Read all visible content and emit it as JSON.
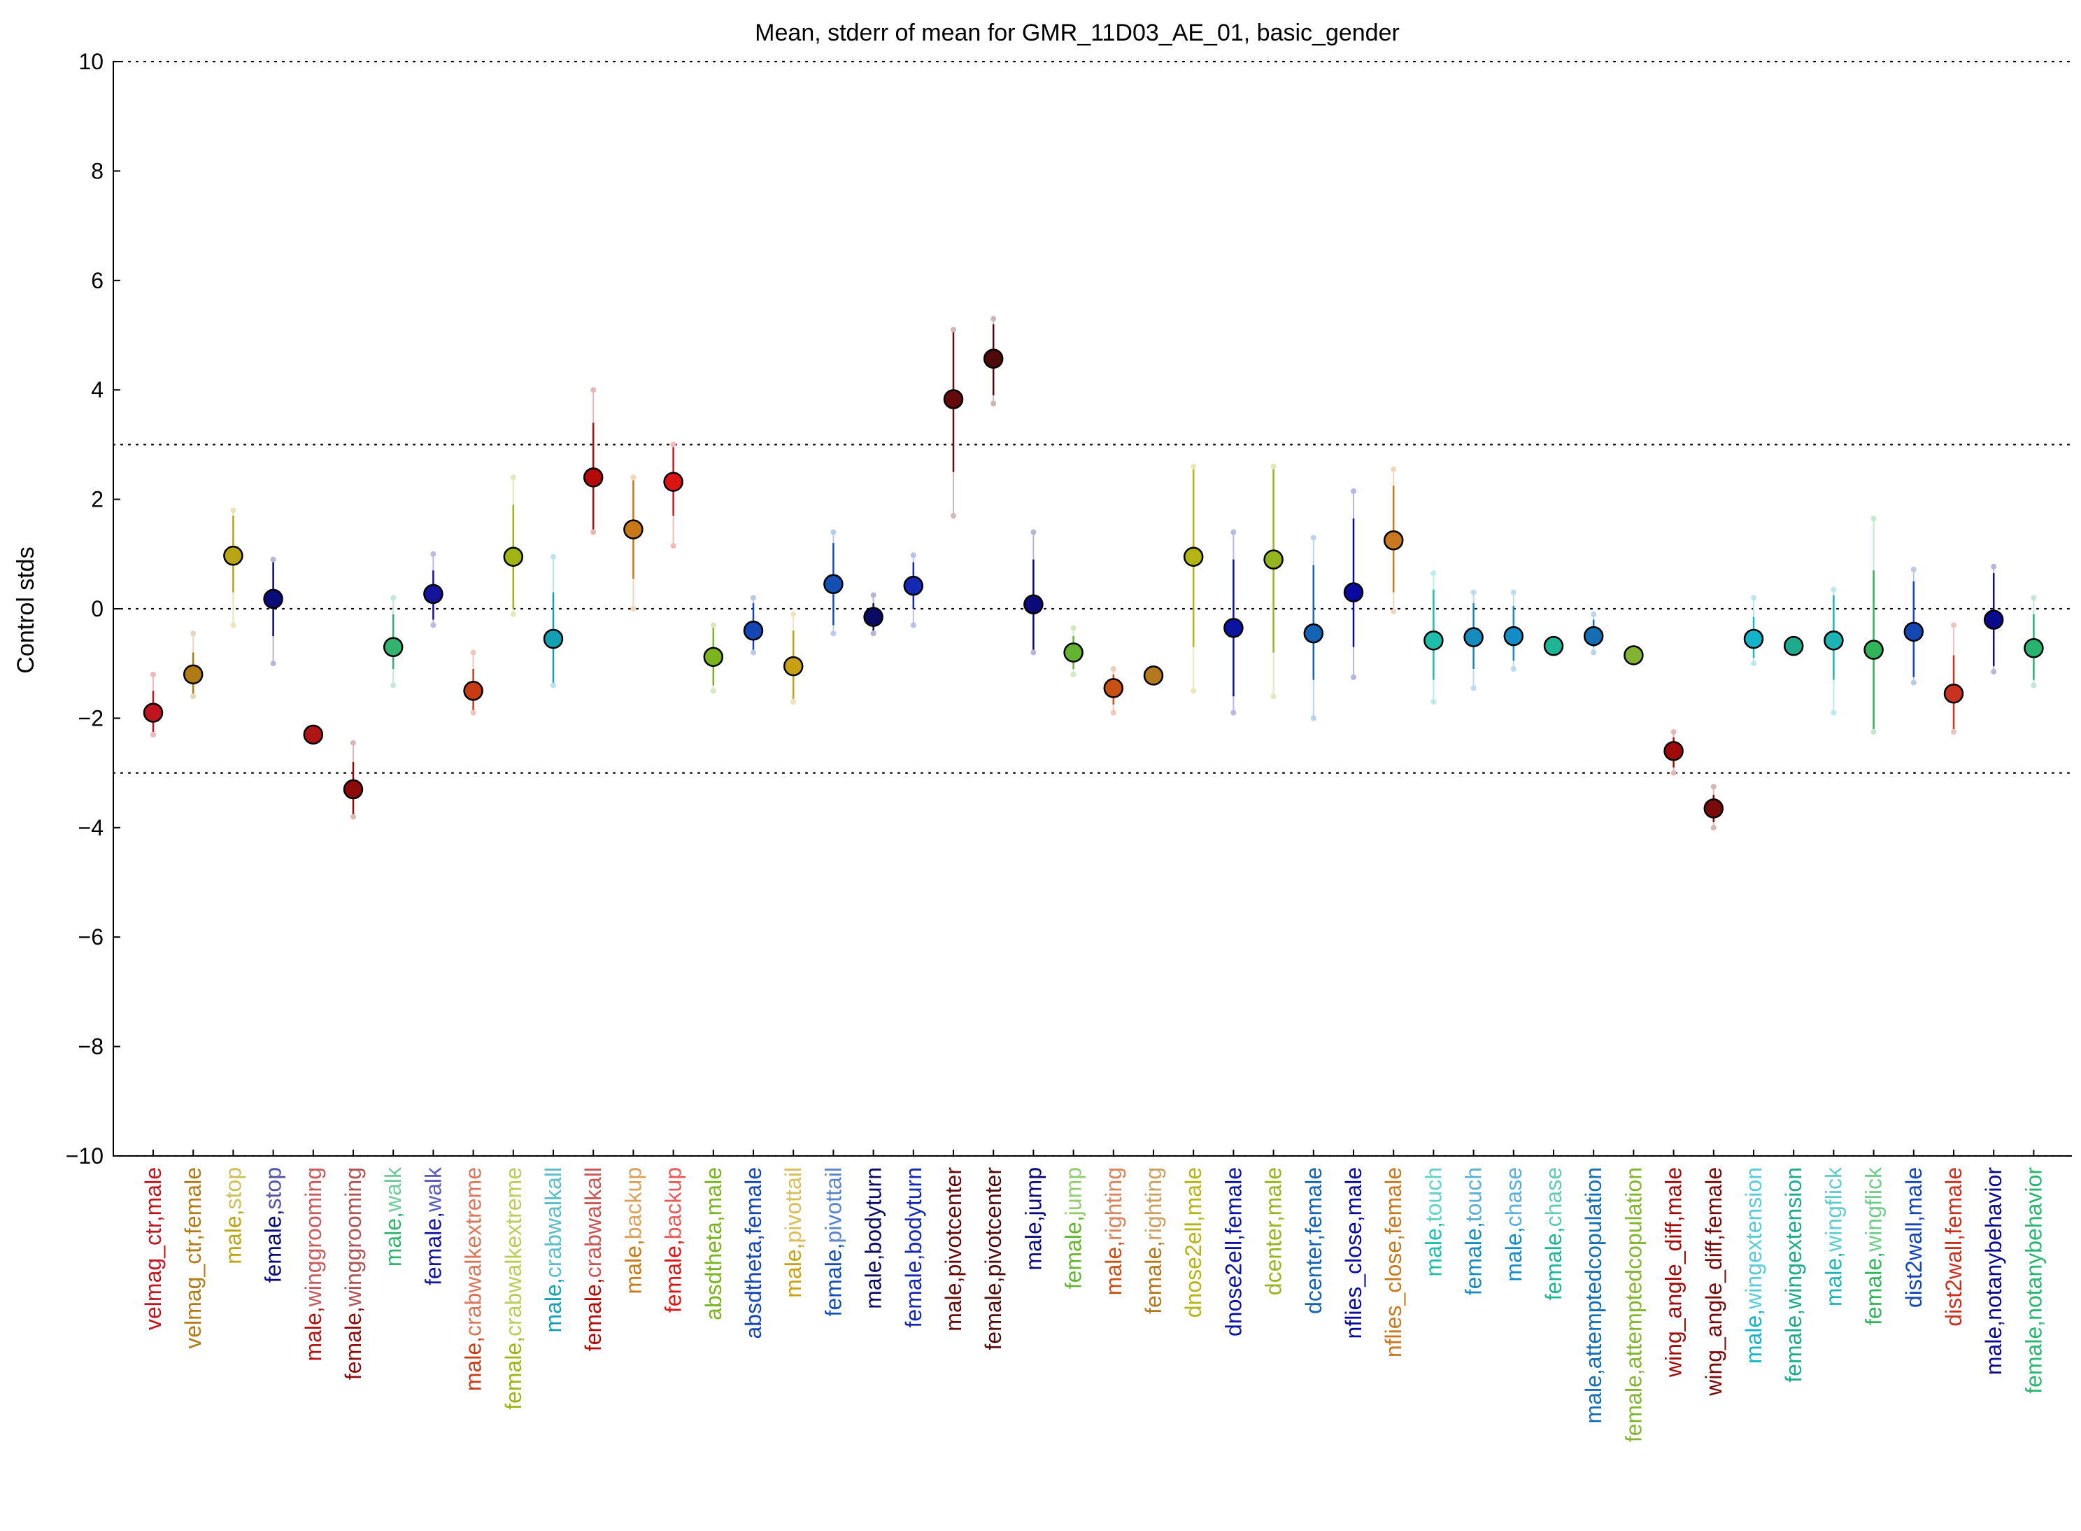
{
  "chart_data": {
    "type": "scatter",
    "title": "Mean, stderr of mean for GMR_11D03_AE_01, basic_gender",
    "xlabel": "",
    "ylabel": "Control stds",
    "ylim": [
      -10,
      10
    ],
    "yticks": [
      -10,
      -8,
      -6,
      -4,
      -2,
      0,
      2,
      4,
      6,
      8,
      10
    ],
    "ytick_labels": [
      "−10",
      "−8",
      "−6",
      "−4",
      "−2",
      "0",
      "2",
      "4",
      "6",
      "8",
      "10"
    ],
    "reference_lines": [
      -10,
      -3,
      0,
      3,
      10
    ],
    "grid": false,
    "legend": "none",
    "series": [
      {
        "label": "velmag_ctr,male",
        "colored": "",
        "color": "#c0141e",
        "mean": -1.9,
        "err_lo": -2.3,
        "err_hi": -1.5,
        "pt_lo": -2.3,
        "pt_hi": -1.2
      },
      {
        "label": "velmag_ctr,female",
        "colored": "",
        "color": "#b07a14",
        "mean": -1.2,
        "err_lo": -1.6,
        "err_hi": -0.8,
        "pt_lo": -1.6,
        "pt_hi": -0.45
      },
      {
        "label": "male,stop",
        "colored": "stop",
        "color": "#b8a414",
        "mean": 0.97,
        "err_lo": 0.3,
        "err_hi": 1.7,
        "pt_lo": -0.3,
        "pt_hi": 1.8
      },
      {
        "label": "female,stop",
        "colored": "stop",
        "color": "#0a0a78",
        "mean": 0.18,
        "err_lo": -0.5,
        "err_hi": 0.9,
        "pt_lo": -1.0,
        "pt_hi": 0.9
      },
      {
        "label": "male,winggrooming",
        "colored": "winggrooming",
        "color": "#b01414",
        "mean": -2.3,
        "err_lo": -2.4,
        "err_hi": -2.2,
        "pt_lo": -2.4,
        "pt_hi": -2.2
      },
      {
        "label": "female,winggrooming",
        "colored": "winggrooming",
        "color": "#8c0a0a",
        "mean": -3.3,
        "err_lo": -3.8,
        "err_hi": -2.8,
        "pt_lo": -3.8,
        "pt_hi": -2.45
      },
      {
        "label": "male,walk",
        "colored": "walk",
        "color": "#32b46e",
        "mean": -0.7,
        "err_lo": -1.1,
        "err_hi": -0.1,
        "pt_lo": -1.4,
        "pt_hi": 0.2
      },
      {
        "label": "female,walk",
        "colored": "walk",
        "color": "#14149c",
        "mean": 0.27,
        "err_lo": -0.2,
        "err_hi": 0.7,
        "pt_lo": -0.3,
        "pt_hi": 1.0
      },
      {
        "label": "male,crabwalkextreme",
        "colored": "crabwalkextreme",
        "color": "#c83c14",
        "mean": -1.5,
        "err_lo": -1.9,
        "err_hi": -1.1,
        "pt_lo": -1.9,
        "pt_hi": -0.8
      },
      {
        "label": "female,crabwalkextreme",
        "colored": "crabwalkextreme",
        "color": "#a0b414",
        "mean": 0.95,
        "err_lo": 0.0,
        "err_hi": 1.9,
        "pt_lo": -0.1,
        "pt_hi": 2.4
      },
      {
        "label": "male,crabwalkall",
        "colored": "crabwalkall",
        "color": "#14a0b4",
        "mean": -0.55,
        "err_lo": -1.4,
        "err_hi": 0.3,
        "pt_lo": -1.4,
        "pt_hi": 0.95
      },
      {
        "label": "female,crabwalkall",
        "colored": "crabwalkall",
        "color": "#b40a0a",
        "mean": 2.4,
        "err_lo": 1.4,
        "err_hi": 3.4,
        "pt_lo": 1.4,
        "pt_hi": 4.0
      },
      {
        "label": "male,backup",
        "colored": "backup",
        "color": "#c87814",
        "mean": 1.45,
        "err_lo": 0.55,
        "err_hi": 2.35,
        "pt_lo": 0.0,
        "pt_hi": 2.4
      },
      {
        "label": "female,backup",
        "colored": "backup",
        "color": "#dc1414",
        "mean": 2.32,
        "err_lo": 1.7,
        "err_hi": 3.0,
        "pt_lo": 1.15,
        "pt_hi": 3.0
      },
      {
        "label": "absdtheta,male",
        "colored": "",
        "color": "#7ab41e",
        "mean": -0.88,
        "err_lo": -1.4,
        "err_hi": -0.3,
        "pt_lo": -1.5,
        "pt_hi": -0.3
      },
      {
        "label": "absdtheta,female",
        "colored": "",
        "color": "#1446b4",
        "mean": -0.4,
        "err_lo": -0.8,
        "err_hi": 0.1,
        "pt_lo": -0.8,
        "pt_hi": 0.2
      },
      {
        "label": "male,pivottail",
        "colored": "pivottail",
        "color": "#c8a014",
        "mean": -1.05,
        "err_lo": -1.65,
        "err_hi": -0.4,
        "pt_lo": -1.7,
        "pt_hi": -0.1
      },
      {
        "label": "female,pivottail",
        "colored": "pivottail",
        "color": "#1450b4",
        "mean": 0.45,
        "err_lo": -0.3,
        "err_hi": 1.2,
        "pt_lo": -0.45,
        "pt_hi": 1.4
      },
      {
        "label": "male,bodyturn",
        "colored": "",
        "color": "#0a0a64",
        "mean": -0.15,
        "err_lo": -0.4,
        "err_hi": 0.1,
        "pt_lo": -0.45,
        "pt_hi": 0.25
      },
      {
        "label": "female,bodyturn",
        "colored": "",
        "color": "#1428b4",
        "mean": 0.42,
        "err_lo": 0.0,
        "err_hi": 0.85,
        "pt_lo": -0.3,
        "pt_hi": 0.98
      },
      {
        "label": "male,pivotcenter",
        "colored": "",
        "color": "#640a0a",
        "mean": 3.83,
        "err_lo": 2.5,
        "err_hi": 5.1,
        "pt_lo": 1.7,
        "pt_hi": 5.1
      },
      {
        "label": "female,pivotcenter",
        "colored": "",
        "color": "#500a0a",
        "mean": 4.57,
        "err_lo": 3.9,
        "err_hi": 5.2,
        "pt_lo": 3.75,
        "pt_hi": 5.3
      },
      {
        "label": "male,jump",
        "colored": "",
        "color": "#0a0a78",
        "mean": 0.08,
        "err_lo": -0.8,
        "err_hi": 0.9,
        "pt_lo": -0.8,
        "pt_hi": 1.4
      },
      {
        "label": "female,jump",
        "colored": "jump",
        "color": "#64b432",
        "mean": -0.8,
        "err_lo": -1.1,
        "err_hi": -0.5,
        "pt_lo": -1.2,
        "pt_hi": -0.35
      },
      {
        "label": "male,righting",
        "colored": "righting",
        "color": "#c85014",
        "mean": -1.45,
        "err_lo": -1.75,
        "err_hi": -1.2,
        "pt_lo": -1.9,
        "pt_hi": -1.1
      },
      {
        "label": "female,righting",
        "colored": "righting",
        "color": "#b4781e",
        "mean": -1.22,
        "err_lo": -1.22,
        "err_hi": -1.22,
        "pt_lo": -1.22,
        "pt_hi": -1.22
      },
      {
        "label": "dnose2ell,male",
        "colored": "",
        "color": "#b4b414",
        "mean": 0.95,
        "err_lo": -0.7,
        "err_hi": 2.6,
        "pt_lo": -1.5,
        "pt_hi": 2.6
      },
      {
        "label": "dnose2ell,female",
        "colored": "",
        "color": "#0a14a0",
        "mean": -0.35,
        "err_lo": -1.6,
        "err_hi": 0.9,
        "pt_lo": -1.9,
        "pt_hi": 1.4
      },
      {
        "label": "dcenter,male",
        "colored": "",
        "color": "#96b41e",
        "mean": 0.9,
        "err_lo": -0.8,
        "err_hi": 2.6,
        "pt_lo": -1.6,
        "pt_hi": 2.6
      },
      {
        "label": "dcenter,female",
        "colored": "",
        "color": "#1464b4",
        "mean": -0.45,
        "err_lo": -1.3,
        "err_hi": 0.8,
        "pt_lo": -2.0,
        "pt_hi": 1.3
      },
      {
        "label": "nflies_close,male",
        "colored": "",
        "color": "#0a0aa0",
        "mean": 0.3,
        "err_lo": -0.7,
        "err_hi": 1.65,
        "pt_lo": -1.25,
        "pt_hi": 2.15
      },
      {
        "label": "nflies_close,female",
        "colored": "",
        "color": "#c8781e",
        "mean": 1.25,
        "err_lo": 0.3,
        "err_hi": 2.25,
        "pt_lo": -0.05,
        "pt_hi": 2.55
      },
      {
        "label": "male,touch",
        "colored": "touch",
        "color": "#1ebeaa",
        "mean": -0.58,
        "err_lo": -1.3,
        "err_hi": 0.35,
        "pt_lo": -1.7,
        "pt_hi": 0.65
      },
      {
        "label": "female,touch",
        "colored": "touch",
        "color": "#148cbe",
        "mean": -0.52,
        "err_lo": -1.1,
        "err_hi": 0.1,
        "pt_lo": -1.45,
        "pt_hi": 0.3
      },
      {
        "label": "male,chase",
        "colored": "chase",
        "color": "#148cc8",
        "mean": -0.5,
        "err_lo": -0.95,
        "err_hi": 0.05,
        "pt_lo": -1.1,
        "pt_hi": 0.3
      },
      {
        "label": "female,chase",
        "colored": "chase",
        "color": "#1eb496",
        "mean": -0.68,
        "err_lo": -0.68,
        "err_hi": -0.68,
        "pt_lo": -0.68,
        "pt_hi": -0.68
      },
      {
        "label": "male,attemptedcopulation",
        "colored": "",
        "color": "#146eb4",
        "mean": -0.5,
        "err_lo": -0.7,
        "err_hi": -0.2,
        "pt_lo": -0.8,
        "pt_hi": -0.1
      },
      {
        "label": "female,attemptedcopulation",
        "colored": "",
        "color": "#82b432",
        "mean": -0.85,
        "err_lo": -0.85,
        "err_hi": -0.85,
        "pt_lo": -0.85,
        "pt_hi": -0.85
      },
      {
        "label": "wing_angle_diff,male",
        "colored": "",
        "color": "#a00a0a",
        "mean": -2.6,
        "err_lo": -2.9,
        "err_hi": -2.35,
        "pt_lo": -3.0,
        "pt_hi": -2.25
      },
      {
        "label": "wing_angle_diff,female",
        "colored": "",
        "color": "#780a0a",
        "mean": -3.65,
        "err_lo": -3.9,
        "err_hi": -3.4,
        "pt_lo": -4.0,
        "pt_hi": -3.25
      },
      {
        "label": "male,wingextension",
        "colored": "wingextension",
        "color": "#14b4c8",
        "mean": -0.55,
        "err_lo": -0.9,
        "err_hi": -0.15,
        "pt_lo": -1.0,
        "pt_hi": 0.2
      },
      {
        "label": "female,wingextension",
        "colored": "",
        "color": "#1eaa8c",
        "mean": -0.68,
        "err_lo": -0.68,
        "err_hi": -0.68,
        "pt_lo": -0.68,
        "pt_hi": -0.68
      },
      {
        "label": "male,wingflick",
        "colored": "wingflick",
        "color": "#1eb4b4",
        "mean": -0.58,
        "err_lo": -1.3,
        "err_hi": 0.25,
        "pt_lo": -1.9,
        "pt_hi": 0.35
      },
      {
        "label": "female,wingflick",
        "colored": "wingflick",
        "color": "#32b45a",
        "mean": -0.75,
        "err_lo": -2.2,
        "err_hi": 0.7,
        "pt_lo": -2.25,
        "pt_hi": 1.65
      },
      {
        "label": "dist2wall,male",
        "colored": "",
        "color": "#1446b4",
        "mean": -0.42,
        "err_lo": -1.25,
        "err_hi": 0.5,
        "pt_lo": -1.35,
        "pt_hi": 0.72
      },
      {
        "label": "dist2wall,female",
        "colored": "",
        "color": "#c8321e",
        "mean": -1.55,
        "err_lo": -2.2,
        "err_hi": -0.85,
        "pt_lo": -2.25,
        "pt_hi": -0.3
      },
      {
        "label": "male,notanybehavior",
        "colored": "",
        "color": "#0a0a8c",
        "mean": -0.2,
        "err_lo": -1.05,
        "err_hi": 0.65,
        "pt_lo": -1.15,
        "pt_hi": 0.77
      },
      {
        "label": "female,notanybehavior",
        "colored": "",
        "color": "#28b46e",
        "mean": -0.72,
        "err_lo": -1.3,
        "err_hi": -0.1,
        "pt_lo": -1.4,
        "pt_hi": 0.2
      }
    ]
  }
}
